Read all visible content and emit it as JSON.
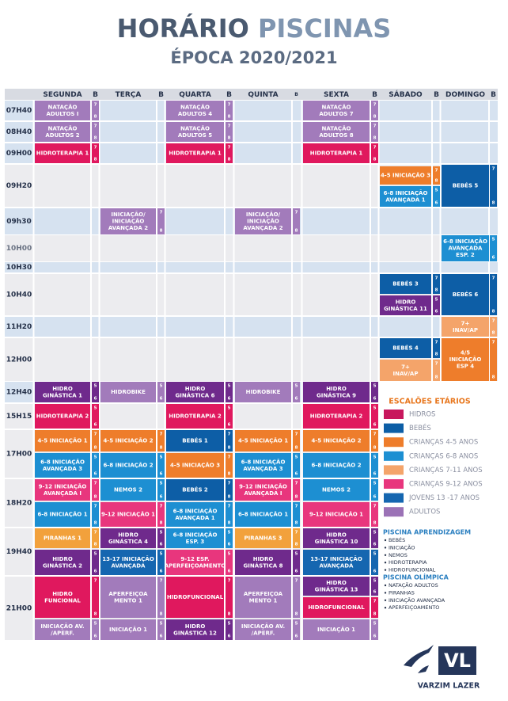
{
  "header": {
    "title_part1": "HORÁRIO",
    "title_part2": "PISCINAS",
    "subtitle": "ÉPOCA 2020/2021"
  },
  "days": [
    "SEGUNDA",
    "TERÇA",
    "QUARTA",
    "QUINTA",
    "SEXTA",
    "SÁBADO",
    "DOMINGO"
  ],
  "b_header": "B",
  "times": [
    "07H40",
    "08H40",
    "09H00",
    "09H20",
    "09h30",
    "10H00",
    "10H30",
    "10H40",
    "11H20",
    "12H00",
    "12H40",
    "15H15",
    "17H00",
    "18H20",
    "19H40",
    "21H00"
  ],
  "sessions": [
    {
      "lines": [
        "NATAÇÃO",
        "ADULTOS I"
      ],
      "b": [
        "7",
        "8"
      ],
      "color": "#a27bbb"
    },
    {
      "lines": [
        "NATAÇÃO",
        "ADULTOS 4"
      ],
      "b": [
        "7",
        "8"
      ],
      "color": "#a27bbb"
    },
    {
      "lines": [
        "NATAÇÃO",
        "ADULTOS 7"
      ],
      "b": [
        "7",
        "8"
      ],
      "color": "#a27bbb"
    },
    {
      "lines": [
        "NATAÇÃO",
        "ADULTOS 2"
      ],
      "b": [
        "7",
        "8"
      ],
      "color": "#a27bbb"
    },
    {
      "lines": [
        "NATAÇÃO",
        "ADULTOS 5"
      ],
      "b": [
        "7",
        "8"
      ],
      "color": "#a27bbb"
    },
    {
      "lines": [
        "NATAÇÃO",
        "ADULTOS 8"
      ],
      "b": [
        "7",
        "8"
      ],
      "color": "#a27bbb"
    },
    {
      "lines": [
        "HIDROTERAPIA 1"
      ],
      "b": [
        "7",
        "8"
      ],
      "color": "#e0185e"
    },
    {
      "lines": [
        "HIDROTERAPIA 1"
      ],
      "b": [
        "7",
        "8"
      ],
      "color": "#e0185e"
    },
    {
      "lines": [
        "HIDROTERAPIA 1"
      ],
      "b": [
        "7",
        "8"
      ],
      "color": "#e0185e"
    },
    {
      "lines": [
        "4-5 INICIAÇÃO 3"
      ],
      "b": [
        "7",
        "8"
      ],
      "color": "#ee7d2b"
    },
    {
      "lines": [
        "6-8 INICIAÇÃO",
        "AVANÇADA 1"
      ],
      "b": [
        "5",
        "6"
      ],
      "color": "#1d8fd2"
    },
    {
      "lines": [
        "BEBÉS 5"
      ],
      "b": [
        "7",
        "8"
      ],
      "color": "#0d5ea6"
    },
    {
      "lines": [
        "INICIAÇÃO/",
        "INICIAÇÃO",
        "AVANÇADA 2"
      ],
      "b": [
        "7",
        "8"
      ],
      "color": "#a27bbb"
    },
    {
      "lines": [
        "INICIAÇÃO/",
        "INICIAÇÃO",
        "AVANÇADA 2"
      ],
      "b": [
        "7",
        "8"
      ],
      "color": "#a27bbb"
    },
    {
      "lines": [
        "6-8 INICIAÇÃO",
        "AVANÇADA",
        "ESP. 2"
      ],
      "b": [
        "5",
        "6"
      ],
      "color": "#1d8fd2"
    },
    {
      "lines": [
        "BEBÉS 3"
      ],
      "b": [
        "7",
        "8"
      ],
      "color": "#0d5ea6"
    },
    {
      "lines": [
        "HIDRO",
        "GINÁSTICA 11"
      ],
      "b": [
        "5",
        "6"
      ],
      "color": "#6f2a8c"
    },
    {
      "lines": [
        "BEBÉS 6"
      ],
      "b": [
        "7",
        "8"
      ],
      "color": "#0d5ea6"
    },
    {
      "lines": [
        "7+",
        "INAV/AP"
      ],
      "b": [
        "7",
        "8"
      ],
      "color": "#f4a46a"
    },
    {
      "lines": [
        "BEBÉS 4"
      ],
      "b": [
        "7",
        "8"
      ],
      "color": "#0d5ea6"
    },
    {
      "lines": [
        "7+",
        "INAV/AP"
      ],
      "b": [
        "7",
        "8"
      ],
      "color": "#f4a46a"
    },
    {
      "lines": [
        "4/5",
        "INICIAÇÃO",
        "ESP 4"
      ],
      "b": [
        "7",
        "8"
      ],
      "color": "#ee7d2b"
    },
    {
      "lines": [
        "HIDRO",
        "GINÁSTICA 1"
      ],
      "b": [
        "5",
        "6"
      ],
      "color": "#6f2a8c"
    },
    {
      "lines": [
        "HIDROBIKE"
      ],
      "b": [
        "5",
        "6"
      ],
      "color": "#a27bbb"
    },
    {
      "lines": [
        "HIDRO",
        "GINÁSTICA 6"
      ],
      "b": [
        "5",
        "6"
      ],
      "color": "#6f2a8c"
    },
    {
      "lines": [
        "HIDROBIKE"
      ],
      "b": [
        "5",
        "6"
      ],
      "color": "#a27bbb"
    },
    {
      "lines": [
        "HIDRO",
        "GINÁSTICA 9"
      ],
      "b": [
        "5",
        "6"
      ],
      "color": "#6f2a8c"
    },
    {
      "lines": [
        "HIDROTERAPIA 2"
      ],
      "b": [
        "5",
        "6"
      ],
      "color": "#e0185e"
    },
    {
      "lines": [
        "HIDROTERAPIA 2"
      ],
      "b": [
        "5",
        "6"
      ],
      "color": "#e0185e"
    },
    {
      "lines": [
        "HIDROTERAPIA 2"
      ],
      "b": [
        "5",
        "6"
      ],
      "color": "#e0185e"
    },
    {
      "lines": [
        "4-5 INICIAÇÃO 1"
      ],
      "b": [
        "7",
        "8"
      ],
      "color": "#ee7d2b"
    },
    {
      "lines": [
        "4-5 INICIAÇÃO 2"
      ],
      "b": [
        "7",
        "8"
      ],
      "color": "#ee7d2b"
    },
    {
      "lines": [
        "BEBÉS 1"
      ],
      "b": [
        "7",
        "8"
      ],
      "color": "#0d5ea6"
    },
    {
      "lines": [
        "4-5 INICIAÇÃO 1"
      ],
      "b": [
        "7",
        "8"
      ],
      "color": "#ee7d2b"
    },
    {
      "lines": [
        "4-5 INICIAÇÃO 2"
      ],
      "b": [
        "7",
        "8"
      ],
      "color": "#ee7d2b"
    },
    {
      "lines": [
        "6-8 INICIAÇÃO",
        "AVANÇADA 3"
      ],
      "b": [
        "5",
        "6"
      ],
      "color": "#1d8fd2"
    },
    {
      "lines": [
        "6-8 INICIAÇÃO 2"
      ],
      "b": [
        "5",
        "6"
      ],
      "color": "#1d8fd2"
    },
    {
      "lines": [
        "4-5 INICIAÇÃO 3"
      ],
      "b": [
        "7",
        "8"
      ],
      "color": "#ee7d2b"
    },
    {
      "lines": [
        "6-8 INICIAÇÃO",
        "AVANÇADA 3"
      ],
      "b": [
        "5",
        "6"
      ],
      "color": "#1d8fd2"
    },
    {
      "lines": [
        "6-8 INICIAÇÃO 2"
      ],
      "b": [
        "5",
        "6"
      ],
      "color": "#1d8fd2"
    },
    {
      "lines": [
        "9-12 INICIAÇÃO",
        "AVANÇADA I"
      ],
      "b": [
        "7",
        "8"
      ],
      "color": "#e8367d"
    },
    {
      "lines": [
        "NEMOS 2"
      ],
      "b": [
        "5",
        "6"
      ],
      "color": "#1d8fd2"
    },
    {
      "lines": [
        "BEBÉS 2"
      ],
      "b": [
        "7",
        "8"
      ],
      "color": "#0d5ea6"
    },
    {
      "lines": [
        "9-12 INICIAÇÃO",
        "AVANÇADA I"
      ],
      "b": [
        "7",
        "8"
      ],
      "color": "#e8367d"
    },
    {
      "lines": [
        "NEMOS 2"
      ],
      "b": [
        "5",
        "6"
      ],
      "color": "#1d8fd2"
    },
    {
      "lines": [
        "6-8 INICIAÇÃO 1"
      ],
      "b": [
        "7",
        "8"
      ],
      "color": "#1d8fd2"
    },
    {
      "lines": [
        "9-12 INICIAÇÃO 1"
      ],
      "b": [
        "7",
        "8"
      ],
      "color": "#e8367d"
    },
    {
      "lines": [
        "6-8 INICIAÇÃO",
        "AVANÇADA 1"
      ],
      "b": [
        "7",
        "8"
      ],
      "color": "#1d8fd2"
    },
    {
      "lines": [
        "6-8 INICIAÇÃO 1"
      ],
      "b": [
        "7",
        "8"
      ],
      "color": "#1d8fd2"
    },
    {
      "lines": [
        "9-12 INICIAÇÃO 1"
      ],
      "b": [
        "7",
        "8"
      ],
      "color": "#e8367d"
    },
    {
      "lines": [
        "PIRANHAS 1"
      ],
      "b": [
        "7",
        "8"
      ],
      "color": "#f2a13c"
    },
    {
      "lines": [
        "HIDRO",
        "GINÁSTICA 4"
      ],
      "b": [
        "5",
        "6"
      ],
      "color": "#6f2a8c"
    },
    {
      "lines": [
        "6-8 INICIAÇÃO",
        "ESP. 3"
      ],
      "b": [
        "5",
        "6"
      ],
      "color": "#1d8fd2"
    },
    {
      "lines": [
        "PIRANHAS 3"
      ],
      "b": [
        "7",
        "8"
      ],
      "color": "#f2a13c"
    },
    {
      "lines": [
        "HIDRO",
        "GINÁSTICA 10"
      ],
      "b": [
        "5",
        "6"
      ],
      "color": "#6f2a8c"
    },
    {
      "lines": [
        "HIDRO",
        "GINÁSTICA 2"
      ],
      "b": [
        "5",
        "6"
      ],
      "color": "#6f2a8c"
    },
    {
      "lines": [
        "13-17 INICIAÇÃO",
        "AVANÇADA"
      ],
      "b": [
        "5",
        "6"
      ],
      "color": "#1566b0"
    },
    {
      "lines": [
        "9-12 ESP.",
        "APERFEIÇOAMENTO"
      ],
      "b": [
        "5",
        "6"
      ],
      "color": "#e8367d"
    },
    {
      "lines": [
        "HIDRO",
        "GINÁSTICA 8"
      ],
      "b": [
        "5",
        "6"
      ],
      "color": "#6f2a8c"
    },
    {
      "lines": [
        "13-17 INICIAÇÃO",
        "AVANÇADA"
      ],
      "b": [
        "5",
        "6"
      ],
      "color": "#1566b0"
    },
    {
      "lines": [
        "HIDRO",
        "FUNCIONAL"
      ],
      "b": [
        "7",
        "8"
      ],
      "color": "#e0185e"
    },
    {
      "lines": [
        "APERFEIÇOA",
        "MENTO 1"
      ],
      "b": [
        "7",
        "8"
      ],
      "color": "#a27bbb"
    },
    {
      "lines": [
        "HIDROFUNCIONAL"
      ],
      "b": [
        "7",
        "8"
      ],
      "color": "#e0185e"
    },
    {
      "lines": [
        "APERFEIÇOA",
        "MENTO 1"
      ],
      "b": [
        "7",
        "8"
      ],
      "color": "#a27bbb"
    },
    {
      "lines": [
        "HIDRO",
        "GINÁSTICA 13"
      ],
      "b": [
        "5",
        "6"
      ],
      "color": "#6f2a8c"
    },
    {
      "lines": [
        "HIDROFUNCIONAL"
      ],
      "b": [
        "7",
        "8"
      ],
      "color": "#e0185e"
    },
    {
      "lines": [
        "INICIAÇÃO AV.",
        "/APERF."
      ],
      "b": [
        "5",
        "6"
      ],
      "color": "#a27bbb"
    },
    {
      "lines": [
        "INICIAÇÃO 1"
      ],
      "b": [
        "5",
        "6"
      ],
      "color": "#a27bbb"
    },
    {
      "lines": [
        "HIDRO",
        "GINÁSTICA 12"
      ],
      "b": [
        "5",
        "6"
      ],
      "color": "#6f2a8c"
    },
    {
      "lines": [
        "INICIAÇÃO AV.",
        "/APERF."
      ],
      "b": [
        "5",
        "6"
      ],
      "color": "#a27bbb"
    },
    {
      "lines": [
        "INICIAÇÃO 1"
      ],
      "b": [
        "5",
        "6"
      ],
      "color": "#a27bbb"
    }
  ],
  "legend": {
    "title": "ESCALÕES ETÁRIOS",
    "items": [
      {
        "name": "HIDROS",
        "color": "#c8175d"
      },
      {
        "name": "BEBÉS",
        "color": "#0d5ea6"
      },
      {
        "name": "CRIANÇAS 4-5 ANOS",
        "color": "#ee7d2b"
      },
      {
        "name": "CRIANÇAS 6-8 ANOS",
        "color": "#1d8fd2"
      },
      {
        "name": "CRIANÇAS 7-11 ANOS",
        "color": "#f4a46a"
      },
      {
        "name": "CRIANÇAS 9-12 ANOS",
        "color": "#e8367d"
      },
      {
        "name": "JOVENS 13 -17 ANOS",
        "color": "#1566b0"
      },
      {
        "name": "ADULTOS",
        "color": "#9b72b6"
      }
    ]
  },
  "pools": [
    {
      "title": "PISCINA APRENDIZAGEM",
      "items": [
        "BEBÉS",
        "INICIAÇÃO",
        "NEMOS",
        "HIDROTERAPIA",
        "HIDROFUNCIONAL"
      ]
    },
    {
      "title": "PISCINA OLÍMPICA",
      "items": [
        "NATAÇÃO ADULTOS",
        "PIRANHAS",
        "INICIAÇÃO AVANÇADA",
        "APERFEIÇOAMENTO"
      ]
    }
  ],
  "brand": {
    "logo": "VL",
    "name": "VARZIM LAZER"
  }
}
